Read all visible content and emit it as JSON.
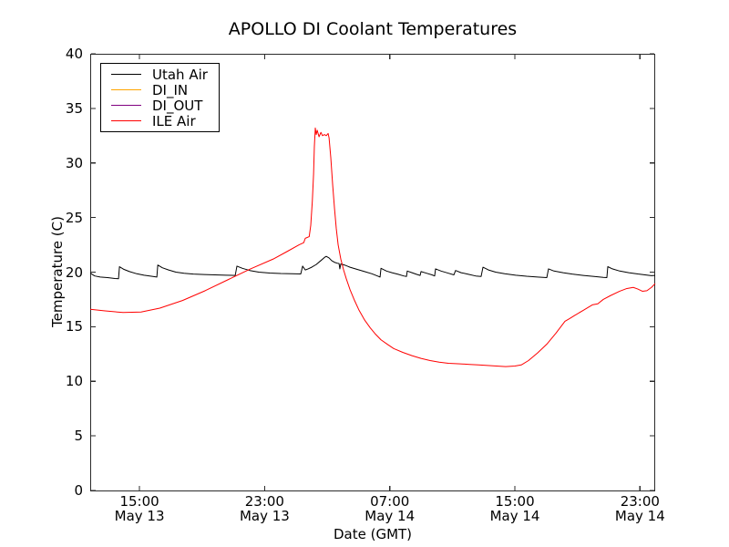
{
  "title": "APOLLO DI Coolant Temperatures",
  "axes": {
    "xlabel": "Date (GMT)",
    "ylabel": "Temperature (C)",
    "x_unit": "hours since May 13 00:00 GMT",
    "x_range_hours": [
      11.85,
      47.97
    ],
    "y_range": [
      0,
      40
    ],
    "x_ticks": [
      {
        "hour": 15,
        "time": "15:00",
        "date": "May 13"
      },
      {
        "hour": 23,
        "time": "23:00",
        "date": "May 13"
      },
      {
        "hour": 31,
        "time": "07:00",
        "date": "May 14"
      },
      {
        "hour": 39,
        "time": "15:00",
        "date": "May 14"
      },
      {
        "hour": 47,
        "time": "23:00",
        "date": "May 14"
      }
    ],
    "y_ticks": [
      0,
      5,
      10,
      15,
      20,
      25,
      30,
      35,
      40
    ]
  },
  "legend": {
    "position": "upper left",
    "entries": [
      {
        "label": "Utah Air",
        "color": "#000000"
      },
      {
        "label": "DI_IN",
        "color": "#ffa500"
      },
      {
        "label": "DI_OUT",
        "color": "#800080"
      },
      {
        "label": "ILE Air",
        "color": "#ff0000"
      }
    ]
  },
  "chart_data": {
    "type": "line",
    "title": "APOLLO DI Coolant Temperatures",
    "xlabel": "Date (GMT)",
    "ylabel": "Temperature (C)",
    "x_unit": "hours since May 13 00:00 GMT",
    "xlim": [
      11.85,
      47.97
    ],
    "ylim": [
      0,
      40
    ],
    "grid": false,
    "legend_position": "upper left",
    "series": [
      {
        "name": "Utah Air",
        "color": "#000000",
        "points": [
          [
            11.85,
            19.95
          ],
          [
            11.97,
            19.8
          ],
          [
            12.14,
            19.65
          ],
          [
            12.49,
            19.55
          ],
          [
            12.96,
            19.5
          ],
          [
            13.43,
            19.42
          ],
          [
            13.66,
            19.4
          ],
          [
            13.72,
            20.5
          ],
          [
            14.01,
            20.25
          ],
          [
            14.36,
            20.05
          ],
          [
            14.83,
            19.85
          ],
          [
            15.29,
            19.72
          ],
          [
            15.76,
            19.62
          ],
          [
            16.11,
            19.55
          ],
          [
            16.17,
            20.65
          ],
          [
            16.46,
            20.4
          ],
          [
            16.86,
            20.2
          ],
          [
            17.33,
            20.0
          ],
          [
            17.85,
            19.9
          ],
          [
            18.44,
            19.82
          ],
          [
            19.14,
            19.78
          ],
          [
            19.83,
            19.75
          ],
          [
            20.53,
            19.72
          ],
          [
            21.12,
            19.7
          ],
          [
            21.23,
            20.55
          ],
          [
            21.58,
            20.35
          ],
          [
            22.05,
            20.15
          ],
          [
            22.63,
            20.0
          ],
          [
            23.33,
            19.92
          ],
          [
            24.03,
            19.87
          ],
          [
            24.73,
            19.85
          ],
          [
            25.31,
            19.83
          ],
          [
            25.43,
            20.55
          ],
          [
            25.6,
            20.2
          ],
          [
            25.78,
            20.3
          ],
          [
            26.01,
            20.45
          ],
          [
            26.3,
            20.7
          ],
          [
            26.59,
            21.05
          ],
          [
            26.83,
            21.35
          ],
          [
            26.94,
            21.45
          ],
          [
            27.12,
            21.3
          ],
          [
            27.29,
            21.05
          ],
          [
            27.47,
            20.9
          ],
          [
            27.64,
            20.82
          ],
          [
            27.76,
            20.78
          ],
          [
            27.81,
            20.3
          ],
          [
            27.87,
            20.75
          ],
          [
            28.11,
            20.65
          ],
          [
            28.46,
            20.45
          ],
          [
            28.92,
            20.25
          ],
          [
            29.39,
            20.05
          ],
          [
            29.86,
            19.85
          ],
          [
            30.21,
            19.65
          ],
          [
            30.38,
            19.55
          ],
          [
            30.44,
            20.35
          ],
          [
            30.79,
            20.1
          ],
          [
            31.14,
            19.95
          ],
          [
            31.54,
            19.8
          ],
          [
            31.89,
            19.65
          ],
          [
            32.07,
            19.6
          ],
          [
            32.12,
            20.1
          ],
          [
            32.42,
            19.95
          ],
          [
            32.71,
            19.8
          ],
          [
            32.94,
            19.7
          ],
          [
            33.0,
            20.05
          ],
          [
            33.35,
            19.9
          ],
          [
            33.7,
            19.75
          ],
          [
            33.87,
            19.65
          ],
          [
            33.93,
            20.3
          ],
          [
            34.28,
            20.1
          ],
          [
            34.75,
            19.9
          ],
          [
            35.1,
            19.75
          ],
          [
            35.21,
            20.15
          ],
          [
            35.56,
            19.95
          ],
          [
            36.03,
            19.8
          ],
          [
            36.49,
            19.65
          ],
          [
            36.84,
            19.6
          ],
          [
            36.96,
            20.45
          ],
          [
            37.31,
            20.2
          ],
          [
            37.77,
            20.0
          ],
          [
            38.35,
            19.85
          ],
          [
            39.05,
            19.72
          ],
          [
            39.75,
            19.62
          ],
          [
            40.45,
            19.55
          ],
          [
            41.04,
            19.5
          ],
          [
            41.15,
            20.3
          ],
          [
            41.5,
            20.1
          ],
          [
            42.08,
            19.95
          ],
          [
            42.66,
            19.82
          ],
          [
            43.37,
            19.7
          ],
          [
            44.07,
            19.6
          ],
          [
            44.65,
            19.52
          ],
          [
            44.88,
            19.5
          ],
          [
            44.94,
            20.5
          ],
          [
            45.23,
            20.3
          ],
          [
            45.7,
            20.1
          ],
          [
            46.28,
            19.95
          ],
          [
            46.86,
            19.83
          ],
          [
            47.44,
            19.73
          ],
          [
            47.73,
            19.68
          ],
          [
            47.97,
            19.7
          ]
        ]
      },
      {
        "name": "DI_IN",
        "color": "#ffa500",
        "points": []
      },
      {
        "name": "DI_OUT",
        "color": "#800080",
        "points": []
      },
      {
        "name": "ILE Air",
        "color": "#ff0000",
        "points": [
          [
            11.85,
            16.6
          ],
          [
            12.8,
            16.45
          ],
          [
            13.95,
            16.3
          ],
          [
            15.1,
            16.35
          ],
          [
            16.3,
            16.7
          ],
          [
            17.75,
            17.4
          ],
          [
            19.2,
            18.3
          ],
          [
            20.65,
            19.3
          ],
          [
            22.1,
            20.3
          ],
          [
            23.55,
            21.2
          ],
          [
            24.45,
            21.9
          ],
          [
            25.2,
            22.5
          ],
          [
            25.5,
            22.7
          ],
          [
            25.6,
            23.1
          ],
          [
            25.85,
            23.25
          ],
          [
            25.95,
            24.3
          ],
          [
            26.05,
            26.5
          ],
          [
            26.13,
            29.0
          ],
          [
            26.18,
            31.5
          ],
          [
            26.24,
            33.2
          ],
          [
            26.3,
            32.6
          ],
          [
            26.36,
            33.0
          ],
          [
            26.48,
            32.4
          ],
          [
            26.6,
            32.8
          ],
          [
            26.7,
            32.5
          ],
          [
            26.83,
            32.6
          ],
          [
            26.94,
            32.5
          ],
          [
            27.06,
            32.7
          ],
          [
            27.12,
            32.3
          ],
          [
            27.23,
            30.5
          ],
          [
            27.35,
            28.0
          ],
          [
            27.47,
            25.8
          ],
          [
            27.58,
            24.0
          ],
          [
            27.7,
            22.5
          ],
          [
            27.87,
            21.2
          ],
          [
            28.05,
            20.2
          ],
          [
            28.22,
            19.4
          ],
          [
            28.46,
            18.4
          ],
          [
            28.75,
            17.4
          ],
          [
            29.04,
            16.5
          ],
          [
            29.4,
            15.6
          ],
          [
            29.75,
            14.9
          ],
          [
            30.1,
            14.3
          ],
          [
            30.44,
            13.8
          ],
          [
            30.84,
            13.4
          ],
          [
            31.25,
            13.0
          ],
          [
            31.83,
            12.65
          ],
          [
            32.42,
            12.35
          ],
          [
            33.0,
            12.1
          ],
          [
            33.58,
            11.9
          ],
          [
            34.16,
            11.75
          ],
          [
            34.75,
            11.65
          ],
          [
            35.5,
            11.6
          ],
          [
            36.1,
            11.55
          ],
          [
            36.67,
            11.5
          ],
          [
            37.25,
            11.45
          ],
          [
            37.83,
            11.4
          ],
          [
            38.41,
            11.35
          ],
          [
            39.0,
            11.4
          ],
          [
            39.41,
            11.5
          ],
          [
            39.87,
            11.9
          ],
          [
            40.45,
            12.6
          ],
          [
            41.04,
            13.4
          ],
          [
            41.62,
            14.4
          ],
          [
            42.2,
            15.5
          ],
          [
            42.5,
            15.75
          ],
          [
            42.78,
            16.0
          ],
          [
            43.37,
            16.5
          ],
          [
            43.95,
            17.0
          ],
          [
            44.3,
            17.1
          ],
          [
            44.65,
            17.5
          ],
          [
            45.11,
            17.85
          ],
          [
            45.7,
            18.25
          ],
          [
            46.16,
            18.5
          ],
          [
            46.57,
            18.6
          ],
          [
            46.86,
            18.45
          ],
          [
            47.15,
            18.25
          ],
          [
            47.44,
            18.3
          ],
          [
            47.73,
            18.6
          ],
          [
            47.97,
            18.95
          ]
        ]
      }
    ]
  }
}
